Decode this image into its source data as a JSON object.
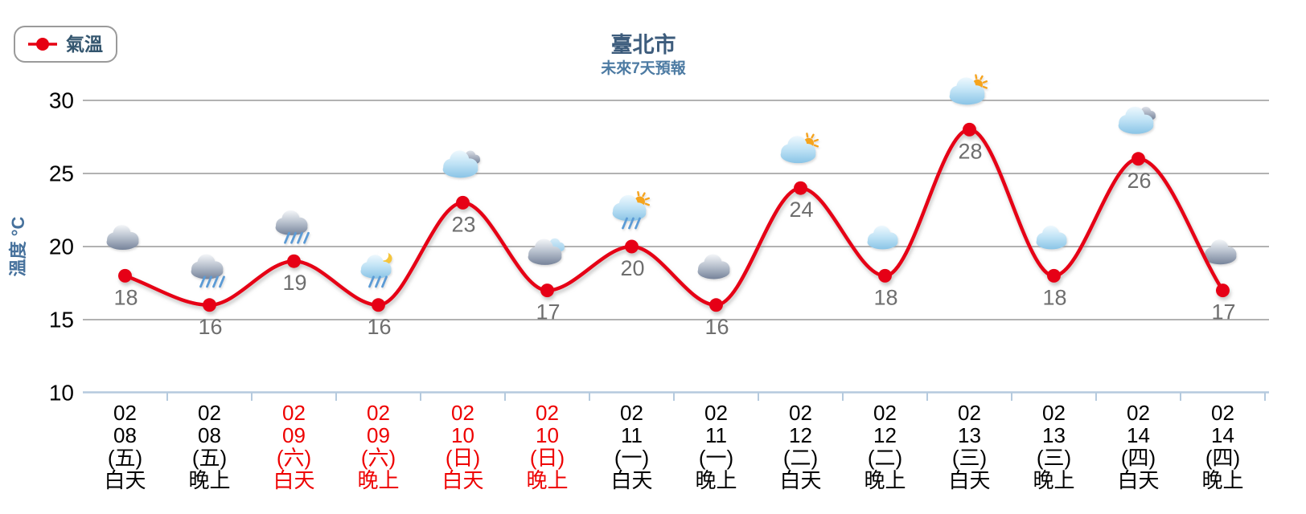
{
  "legend": {
    "label": "氣溫"
  },
  "header": {
    "title": "臺北市",
    "subtitle": "未來7天預報"
  },
  "chart_data": {
    "type": "line",
    "title": "臺北市",
    "subtitle": "未來7天預報",
    "xlabel": "",
    "ylabel": "溫度 °C",
    "ylim": [
      10,
      30
    ],
    "yticks": [
      10,
      15,
      20,
      25,
      30
    ],
    "grid": true,
    "legend_position": "top-left",
    "series": [
      {
        "name": "氣溫",
        "color": "#e60012",
        "values": [
          18,
          16,
          19,
          16,
          23,
          17,
          20,
          16,
          24,
          18,
          28,
          18,
          26,
          17
        ]
      }
    ],
    "categories": [
      {
        "month": "02",
        "day": "08",
        "weekday": "(五)",
        "period": "白天",
        "weekend": false,
        "icon": "cloudy"
      },
      {
        "month": "02",
        "day": "08",
        "weekday": "(五)",
        "period": "晚上",
        "weekend": false,
        "icon": "rain"
      },
      {
        "month": "02",
        "day": "09",
        "weekday": "(六)",
        "period": "白天",
        "weekend": true,
        "icon": "rain"
      },
      {
        "month": "02",
        "day": "09",
        "weekday": "(六)",
        "period": "晚上",
        "weekend": true,
        "icon": "night-rain"
      },
      {
        "month": "02",
        "day": "10",
        "weekday": "(日)",
        "period": "白天",
        "weekend": true,
        "icon": "mostly-cloudy"
      },
      {
        "month": "02",
        "day": "10",
        "weekday": "(日)",
        "period": "晚上",
        "weekend": true,
        "icon": "cloudy-mix"
      },
      {
        "month": "02",
        "day": "11",
        "weekday": "(一)",
        "period": "白天",
        "weekend": false,
        "icon": "sun-shower"
      },
      {
        "month": "02",
        "day": "11",
        "weekday": "(一)",
        "period": "晚上",
        "weekend": false,
        "icon": "cloudy"
      },
      {
        "month": "02",
        "day": "12",
        "weekday": "(二)",
        "period": "白天",
        "weekend": false,
        "icon": "partly-sunny"
      },
      {
        "month": "02",
        "day": "12",
        "weekday": "(二)",
        "period": "晚上",
        "weekend": false,
        "icon": "cloud-blue"
      },
      {
        "month": "02",
        "day": "13",
        "weekday": "(三)",
        "period": "白天",
        "weekend": false,
        "icon": "partly-sunny"
      },
      {
        "month": "02",
        "day": "13",
        "weekday": "(三)",
        "period": "晚上",
        "weekend": false,
        "icon": "cloud-blue"
      },
      {
        "month": "02",
        "day": "14",
        "weekday": "(四)",
        "period": "白天",
        "weekend": false,
        "icon": "mostly-cloudy"
      },
      {
        "month": "02",
        "day": "14",
        "weekday": "(四)",
        "period": "晚上",
        "weekend": false,
        "icon": "cloudy"
      }
    ]
  },
  "colors": {
    "accent_red": "#e60012",
    "title_text": "#3d5c7c",
    "subtitle_text": "#4d7ba3",
    "axis_title_text": "#46719c",
    "tick_label": "#000000",
    "value_label": "#6e6e6e",
    "weekday_label": "#000000",
    "weekend_label": "#ee0000",
    "gridline": "#b2b2b2",
    "axis_line": "#b5cade",
    "rain": "#5b9bd5",
    "sun": "#f6a41f",
    "moon": "#f5c53a"
  }
}
